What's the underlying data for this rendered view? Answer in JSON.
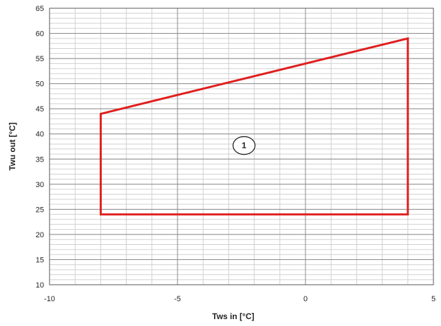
{
  "chart_data": {
    "type": "line",
    "xlabel": "Tws  in [°C]",
    "ylabel": "Twu out [°C]",
    "xlim": [
      -10,
      5
    ],
    "ylim": [
      10,
      65
    ],
    "x_ticks": [
      -10,
      -5,
      0,
      5
    ],
    "y_ticks": [
      10,
      15,
      20,
      25,
      30,
      35,
      40,
      45,
      50,
      55,
      60,
      65
    ],
    "x_minor_step": 1,
    "y_minor_step": 1,
    "grid": true,
    "series": [
      {
        "color": "#e01e1e",
        "closed": true,
        "points": [
          [
            -8,
            24
          ],
          [
            -8,
            44
          ],
          [
            4,
            59
          ],
          [
            4,
            24
          ]
        ]
      }
    ],
    "annotations": [
      {
        "text": "1",
        "x": -2.4,
        "y": 37.7,
        "shape": "circle"
      }
    ]
  }
}
